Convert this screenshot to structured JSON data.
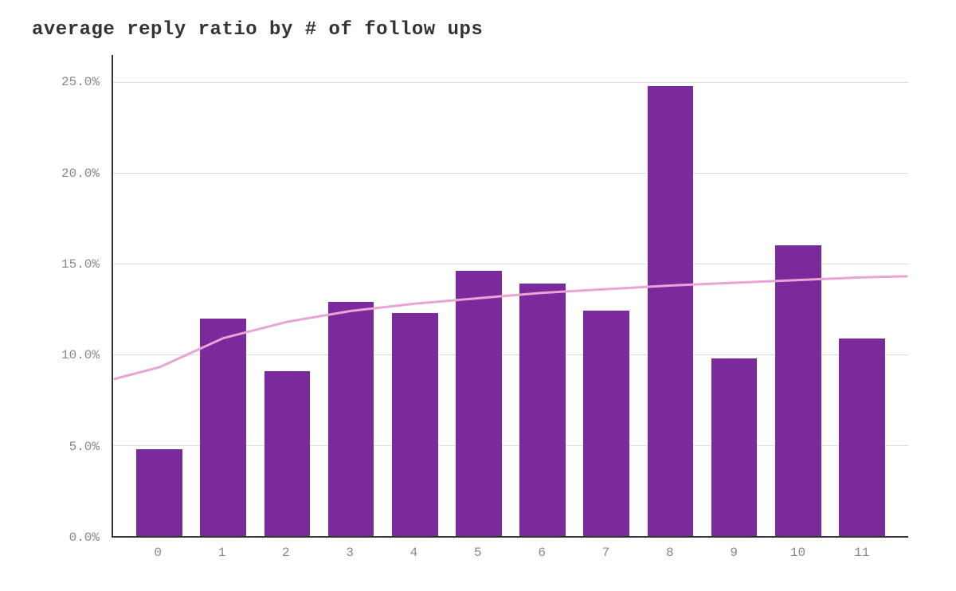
{
  "chart": {
    "type": "bar",
    "title": "average reply ratio by # of follow ups",
    "title_fontsize": 24,
    "title_fontweight": "bold",
    "title_color": "#333333",
    "font_family": "Courier New, monospace",
    "background_color": "#ffffff",
    "categories": [
      "0",
      "1",
      "2",
      "3",
      "4",
      "5",
      "6",
      "7",
      "8",
      "9",
      "10",
      "11"
    ],
    "values": [
      4.8,
      12.0,
      9.1,
      12.9,
      12.3,
      14.6,
      13.9,
      12.4,
      24.8,
      9.8,
      16.0,
      10.9
    ],
    "bar_color": "#7b2a9b",
    "bar_width": 0.72,
    "y_axis": {
      "min": 0,
      "max": 26.5,
      "ticks": [
        0,
        5,
        10,
        15,
        20,
        25
      ],
      "tick_labels": [
        "0.0%",
        "5.0%",
        "10.0%",
        "15.0%",
        "20.0%",
        "25.0%"
      ],
      "label_fontsize": 16,
      "label_color": "#888888"
    },
    "x_axis": {
      "label_fontsize": 16,
      "label_color": "#888888"
    },
    "gridline_color": "#dddddd",
    "axis_color": "#333333",
    "trend_line": {
      "color": "#e9a3d4",
      "width": 3,
      "type": "log-fit",
      "points_y": [
        9.3,
        10.9,
        11.8,
        12.4,
        12.8,
        13.1,
        13.4,
        13.6,
        13.8,
        13.95,
        14.1,
        14.25
      ]
    }
  }
}
